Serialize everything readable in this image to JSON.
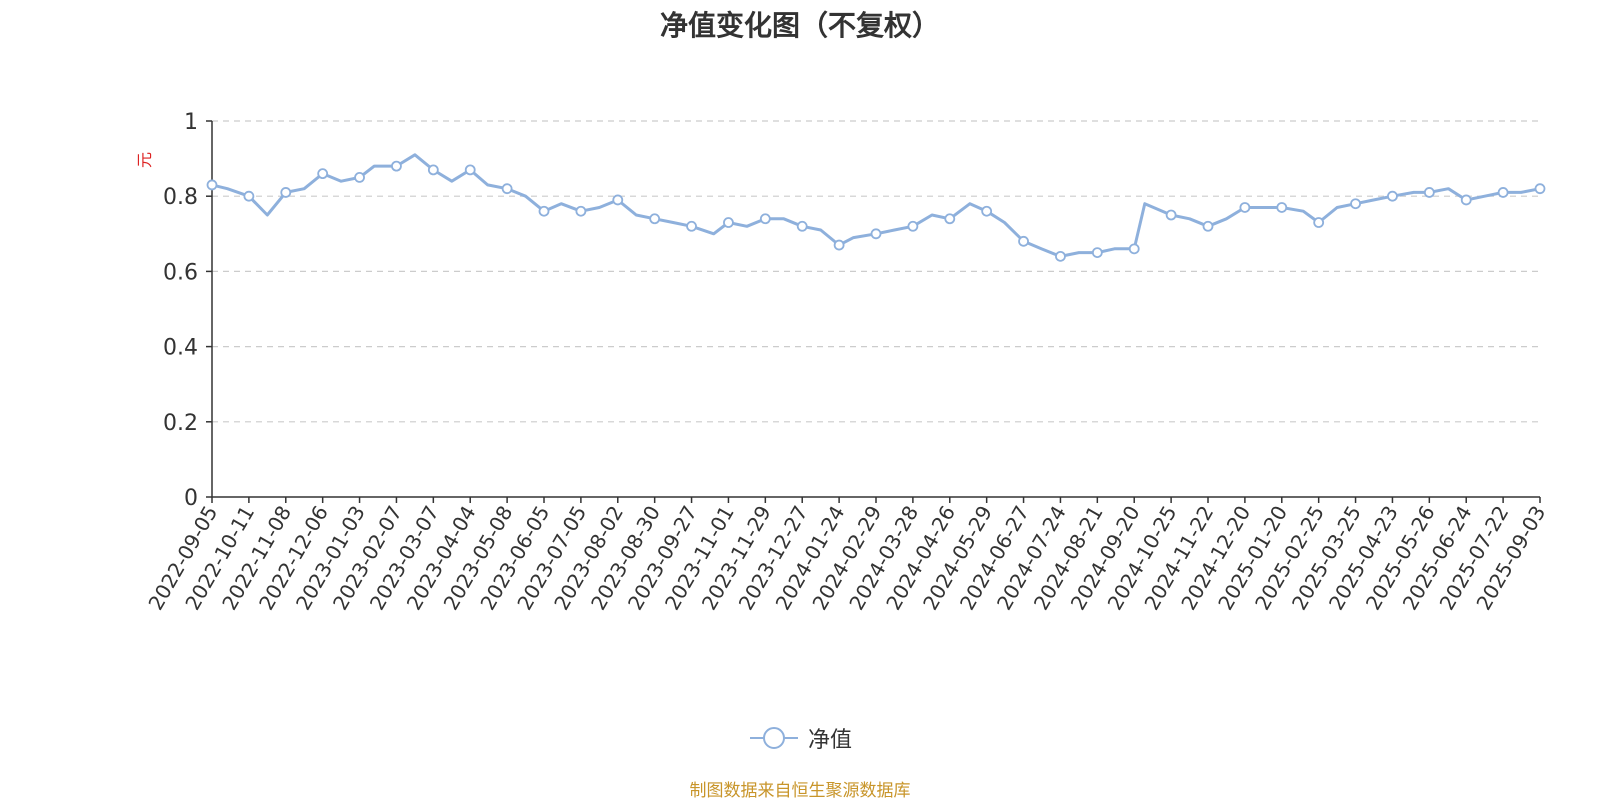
{
  "chart_data": {
    "type": "line",
    "title": "净值变化图（不复权）",
    "ylabel": "元",
    "ylim": [
      0,
      1
    ],
    "yticks": [
      "0",
      "0.2",
      "0.4",
      "0.6",
      "0.8",
      "1"
    ],
    "grid": true,
    "legend_position": "bottom-center",
    "x_tick_labels": [
      "2022-09-05",
      "2022-10-11",
      "2022-11-08",
      "2022-12-06",
      "2023-01-03",
      "2023-02-07",
      "2023-03-07",
      "2023-04-04",
      "2023-05-08",
      "2023-06-05",
      "2023-07-05",
      "2023-08-02",
      "2023-08-30",
      "2023-09-27",
      "2023-11-01",
      "2023-11-29",
      "2023-12-27",
      "2024-01-24",
      "2024-02-29",
      "2024-03-28",
      "2024-04-26",
      "2024-05-29",
      "2024-06-27",
      "2024-07-24",
      "2024-08-21",
      "2024-09-20",
      "2024-10-25",
      "2024-11-22",
      "2024-12-20",
      "2025-01-20",
      "2025-02-25",
      "2025-03-25",
      "2025-04-23",
      "2025-05-26",
      "2025-06-24",
      "2025-07-22",
      "2025-09-03"
    ],
    "series": [
      {
        "name": "净值",
        "color": "#8eb0dc",
        "x": [
          "2022-09-05",
          "2022-09-20",
          "2022-10-11",
          "2022-10-25",
          "2022-11-08",
          "2022-11-22",
          "2022-12-06",
          "2022-12-20",
          "2023-01-03",
          "2023-01-17",
          "2023-02-07",
          "2023-02-21",
          "2023-03-07",
          "2023-03-21",
          "2023-04-04",
          "2023-04-20",
          "2023-05-08",
          "2023-05-22",
          "2023-06-05",
          "2023-06-19",
          "2023-07-05",
          "2023-07-19",
          "2023-08-02",
          "2023-08-16",
          "2023-08-30",
          "2023-09-13",
          "2023-09-27",
          "2023-10-18",
          "2023-11-01",
          "2023-11-15",
          "2023-11-29",
          "2023-12-13",
          "2023-12-27",
          "2024-01-10",
          "2024-01-24",
          "2024-02-07",
          "2024-02-29",
          "2024-03-14",
          "2024-03-28",
          "2024-04-12",
          "2024-04-26",
          "2024-05-14",
          "2024-05-29",
          "2024-06-12",
          "2024-06-27",
          "2024-07-10",
          "2024-07-24",
          "2024-08-07",
          "2024-08-21",
          "2024-09-04",
          "2024-09-20",
          "2024-09-30",
          "2024-10-25",
          "2024-11-08",
          "2024-11-22",
          "2024-12-06",
          "2024-12-20",
          "2025-01-06",
          "2025-01-20",
          "2025-02-10",
          "2025-02-25",
          "2025-03-11",
          "2025-03-25",
          "2025-04-08",
          "2025-04-23",
          "2025-05-12",
          "2025-05-26",
          "2025-06-10",
          "2025-06-24",
          "2025-07-08",
          "2025-07-22",
          "2025-08-12",
          "2025-09-03"
        ],
        "values": [
          0.83,
          0.82,
          0.8,
          0.75,
          0.81,
          0.82,
          0.86,
          0.84,
          0.85,
          0.88,
          0.88,
          0.91,
          0.87,
          0.84,
          0.87,
          0.83,
          0.82,
          0.8,
          0.76,
          0.78,
          0.76,
          0.77,
          0.79,
          0.75,
          0.74,
          0.73,
          0.72,
          0.7,
          0.73,
          0.72,
          0.74,
          0.74,
          0.72,
          0.71,
          0.67,
          0.69,
          0.7,
          0.71,
          0.72,
          0.75,
          0.74,
          0.78,
          0.76,
          0.73,
          0.68,
          0.66,
          0.64,
          0.65,
          0.65,
          0.66,
          0.66,
          0.78,
          0.75,
          0.74,
          0.72,
          0.74,
          0.77,
          0.77,
          0.77,
          0.76,
          0.73,
          0.77,
          0.78,
          0.79,
          0.8,
          0.81,
          0.81,
          0.82,
          0.79,
          0.8,
          0.81,
          0.81,
          0.82
        ]
      }
    ]
  },
  "source_note": "制图数据来自恒生聚源数据库",
  "colors": {
    "line": "#8eb0dc",
    "axis": "#333333",
    "grid": "#cccccc",
    "ylabel": "#dd2222",
    "source_note": "#c8952a"
  }
}
